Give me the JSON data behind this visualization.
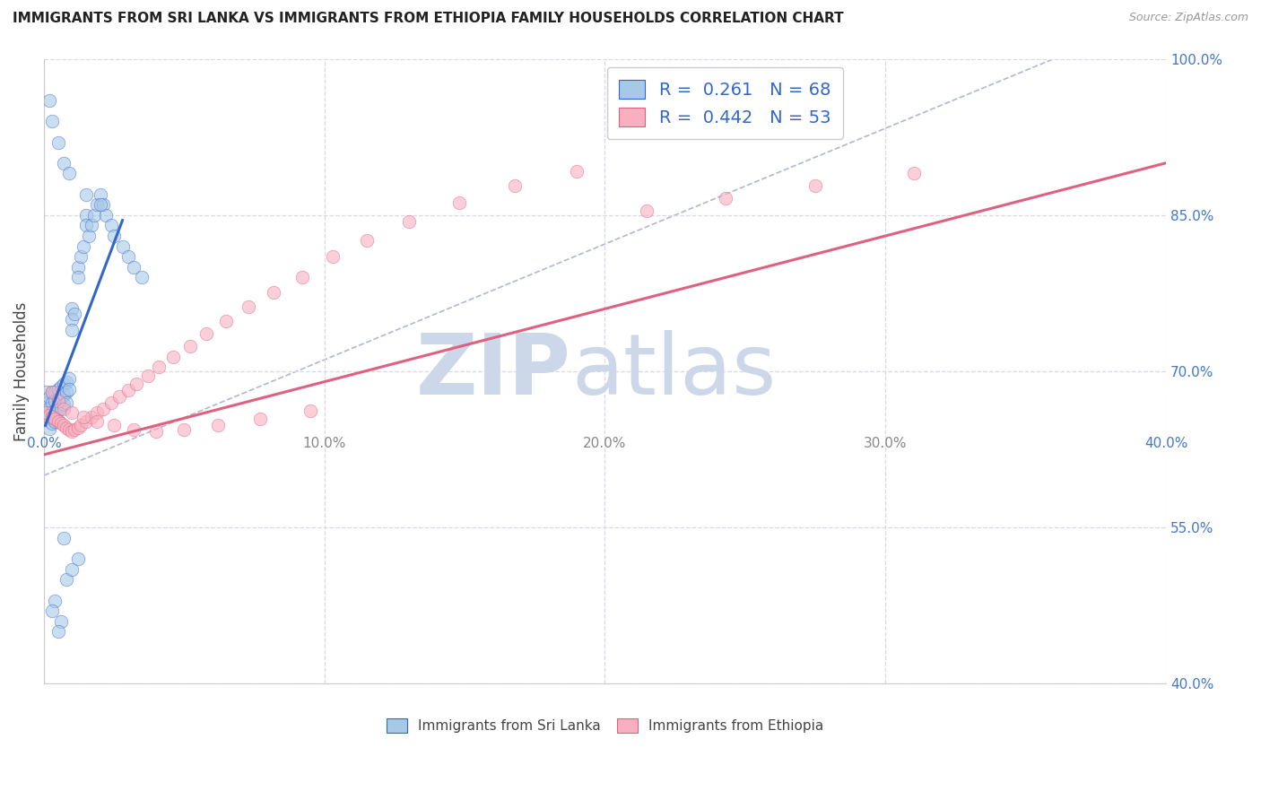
{
  "title": "IMMIGRANTS FROM SRI LANKA VS IMMIGRANTS FROM ETHIOPIA FAMILY HOUSEHOLDS CORRELATION CHART",
  "source": "Source: ZipAtlas.com",
  "ylabel": "Family Households",
  "legend_label_1": "Immigrants from Sri Lanka",
  "legend_label_2": "Immigrants from Ethiopia",
  "R1": 0.261,
  "N1": 68,
  "R2": 0.442,
  "N2": 53,
  "color1": "#a8c8e8",
  "color2": "#f8b0c0",
  "line_color1": "#3366cc",
  "line_color2": "#e06080",
  "ref_line_color": "#b0b8d0",
  "xlim": [
    0.0,
    0.4
  ],
  "ylim": [
    0.4,
    1.0
  ],
  "xticks": [
    0.0,
    0.1,
    0.2,
    0.3,
    0.4
  ],
  "yticks": [
    0.4,
    0.55,
    0.7,
    0.85,
    1.0
  ],
  "xticklabels_bottom": [
    "0.0%",
    "",
    "",
    "",
    "40.0%"
  ],
  "xticklabels_inner": [
    "",
    "10.0%",
    "20.0%",
    "30.0%",
    ""
  ],
  "yticklabels": [
    "40.0%",
    "55.0%",
    "70.0%",
    "85.0%",
    "100.0%"
  ],
  "scatter1_x": [
    0.001,
    0.001,
    0.001,
    0.002,
    0.002,
    0.002,
    0.002,
    0.003,
    0.003,
    0.003,
    0.003,
    0.004,
    0.004,
    0.004,
    0.004,
    0.005,
    0.005,
    0.005,
    0.005,
    0.006,
    0.006,
    0.006,
    0.007,
    0.007,
    0.007,
    0.008,
    0.008,
    0.008,
    0.009,
    0.009,
    0.01,
    0.01,
    0.01,
    0.011,
    0.012,
    0.012,
    0.013,
    0.014,
    0.015,
    0.015,
    0.016,
    0.017,
    0.018,
    0.019,
    0.02,
    0.021,
    0.022,
    0.024,
    0.025,
    0.028,
    0.03,
    0.032,
    0.035,
    0.002,
    0.003,
    0.005,
    0.007,
    0.009,
    0.015,
    0.02,
    0.004,
    0.006,
    0.008,
    0.01,
    0.012,
    0.003,
    0.005,
    0.007
  ],
  "scatter1_y": [
    0.68,
    0.67,
    0.66,
    0.675,
    0.665,
    0.655,
    0.645,
    0.68,
    0.67,
    0.66,
    0.65,
    0.68,
    0.672,
    0.662,
    0.652,
    0.683,
    0.673,
    0.663,
    0.653,
    0.685,
    0.675,
    0.665,
    0.688,
    0.678,
    0.668,
    0.69,
    0.68,
    0.67,
    0.693,
    0.683,
    0.76,
    0.75,
    0.74,
    0.755,
    0.8,
    0.79,
    0.81,
    0.82,
    0.85,
    0.84,
    0.83,
    0.84,
    0.85,
    0.86,
    0.87,
    0.86,
    0.85,
    0.84,
    0.83,
    0.82,
    0.81,
    0.8,
    0.79,
    0.96,
    0.94,
    0.92,
    0.9,
    0.89,
    0.87,
    0.86,
    0.48,
    0.46,
    0.5,
    0.51,
    0.52,
    0.47,
    0.45,
    0.54
  ],
  "scatter2_x": [
    0.001,
    0.002,
    0.003,
    0.004,
    0.005,
    0.006,
    0.007,
    0.008,
    0.009,
    0.01,
    0.011,
    0.012,
    0.013,
    0.015,
    0.017,
    0.019,
    0.021,
    0.024,
    0.027,
    0.03,
    0.033,
    0.037,
    0.041,
    0.046,
    0.052,
    0.058,
    0.065,
    0.073,
    0.082,
    0.092,
    0.103,
    0.115,
    0.13,
    0.148,
    0.168,
    0.19,
    0.215,
    0.243,
    0.275,
    0.31,
    0.003,
    0.005,
    0.007,
    0.01,
    0.014,
    0.019,
    0.025,
    0.032,
    0.04,
    0.05,
    0.062,
    0.077,
    0.095
  ],
  "scatter2_y": [
    0.66,
    0.658,
    0.656,
    0.654,
    0.652,
    0.65,
    0.648,
    0.646,
    0.644,
    0.642,
    0.644,
    0.646,
    0.648,
    0.652,
    0.656,
    0.66,
    0.664,
    0.67,
    0.676,
    0.682,
    0.688,
    0.696,
    0.704,
    0.714,
    0.724,
    0.736,
    0.748,
    0.762,
    0.776,
    0.79,
    0.81,
    0.826,
    0.844,
    0.862,
    0.878,
    0.892,
    0.854,
    0.866,
    0.878,
    0.89,
    0.68,
    0.672,
    0.664,
    0.66,
    0.656,
    0.652,
    0.648,
    0.644,
    0.642,
    0.644,
    0.648,
    0.654,
    0.662
  ],
  "line1_x": [
    0.0005,
    0.028
  ],
  "line1_y": [
    0.648,
    0.845
  ],
  "line2_x": [
    0.0,
    0.4
  ],
  "line2_y": [
    0.62,
    0.9
  ],
  "ref_line_x": [
    0.0,
    0.36
  ],
  "ref_line_y": [
    0.6,
    1.0
  ],
  "watermark_zip": "ZIP",
  "watermark_atlas": "atlas",
  "watermark_color": "#ccd8ea",
  "grid_color": "#d8d8e8",
  "title_fontsize": 11,
  "axis_label_color": "#4477cc",
  "tick_label_color_x": "#4477cc",
  "tick_fontsize": 11
}
